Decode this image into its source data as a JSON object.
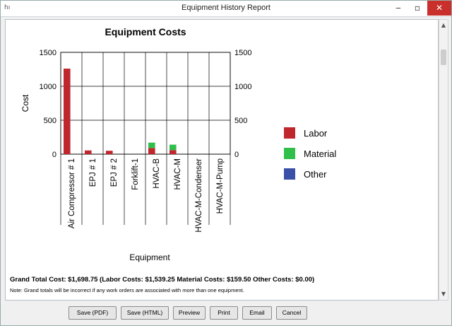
{
  "window": {
    "title": "Equipment History Report",
    "minimize_label": "‒",
    "maximize_label": "▫",
    "close_label": "✕",
    "app_icon_glyph": "hı"
  },
  "chart_data": {
    "type": "bar",
    "stacked": true,
    "title": "Equipment Costs",
    "xlabel": "Equipment",
    "ylabel": "Cost",
    "ylim": [
      0,
      1500
    ],
    "yticks": [
      0,
      500,
      1000,
      1500
    ],
    "grid": true,
    "secondary_y_axis": true,
    "legend_position": "right",
    "categories": [
      "Air Compressor # 1",
      "EPJ # 1",
      "EPJ # 2",
      "Forklift-1",
      "HVAC-B",
      "HVAC-M",
      "HVAC-M-Condenser",
      "HVAC-M-Pump"
    ],
    "series": [
      {
        "name": "Labor",
        "color": "#c0272d",
        "values": [
          1260,
          55,
          50,
          0,
          90,
          60,
          0,
          0
        ]
      },
      {
        "name": "Material",
        "color": "#2fbf4a",
        "values": [
          0,
          0,
          0,
          0,
          80,
          80,
          0,
          0
        ]
      },
      {
        "name": "Other",
        "color": "#3a4fa8",
        "values": [
          0,
          0,
          0,
          0,
          0,
          0,
          0,
          0
        ]
      }
    ]
  },
  "summary": {
    "totals": "Grand Total Cost: $1,698.75 (Labor Costs: $1,539.25 Material Costs: $159.50 Other Costs: $0.00)",
    "note": "Note: Grand totals will be incorrect if any work orders are associated with more than one equipment."
  },
  "buttons": {
    "save_pdf": "Save (PDF)",
    "save_html": "Save (HTML)",
    "preview": "Preview",
    "print": "Print",
    "email": "Email",
    "cancel": "Cancel"
  },
  "scrollbar": {
    "up_icon": "▲",
    "down_icon": "▼"
  }
}
